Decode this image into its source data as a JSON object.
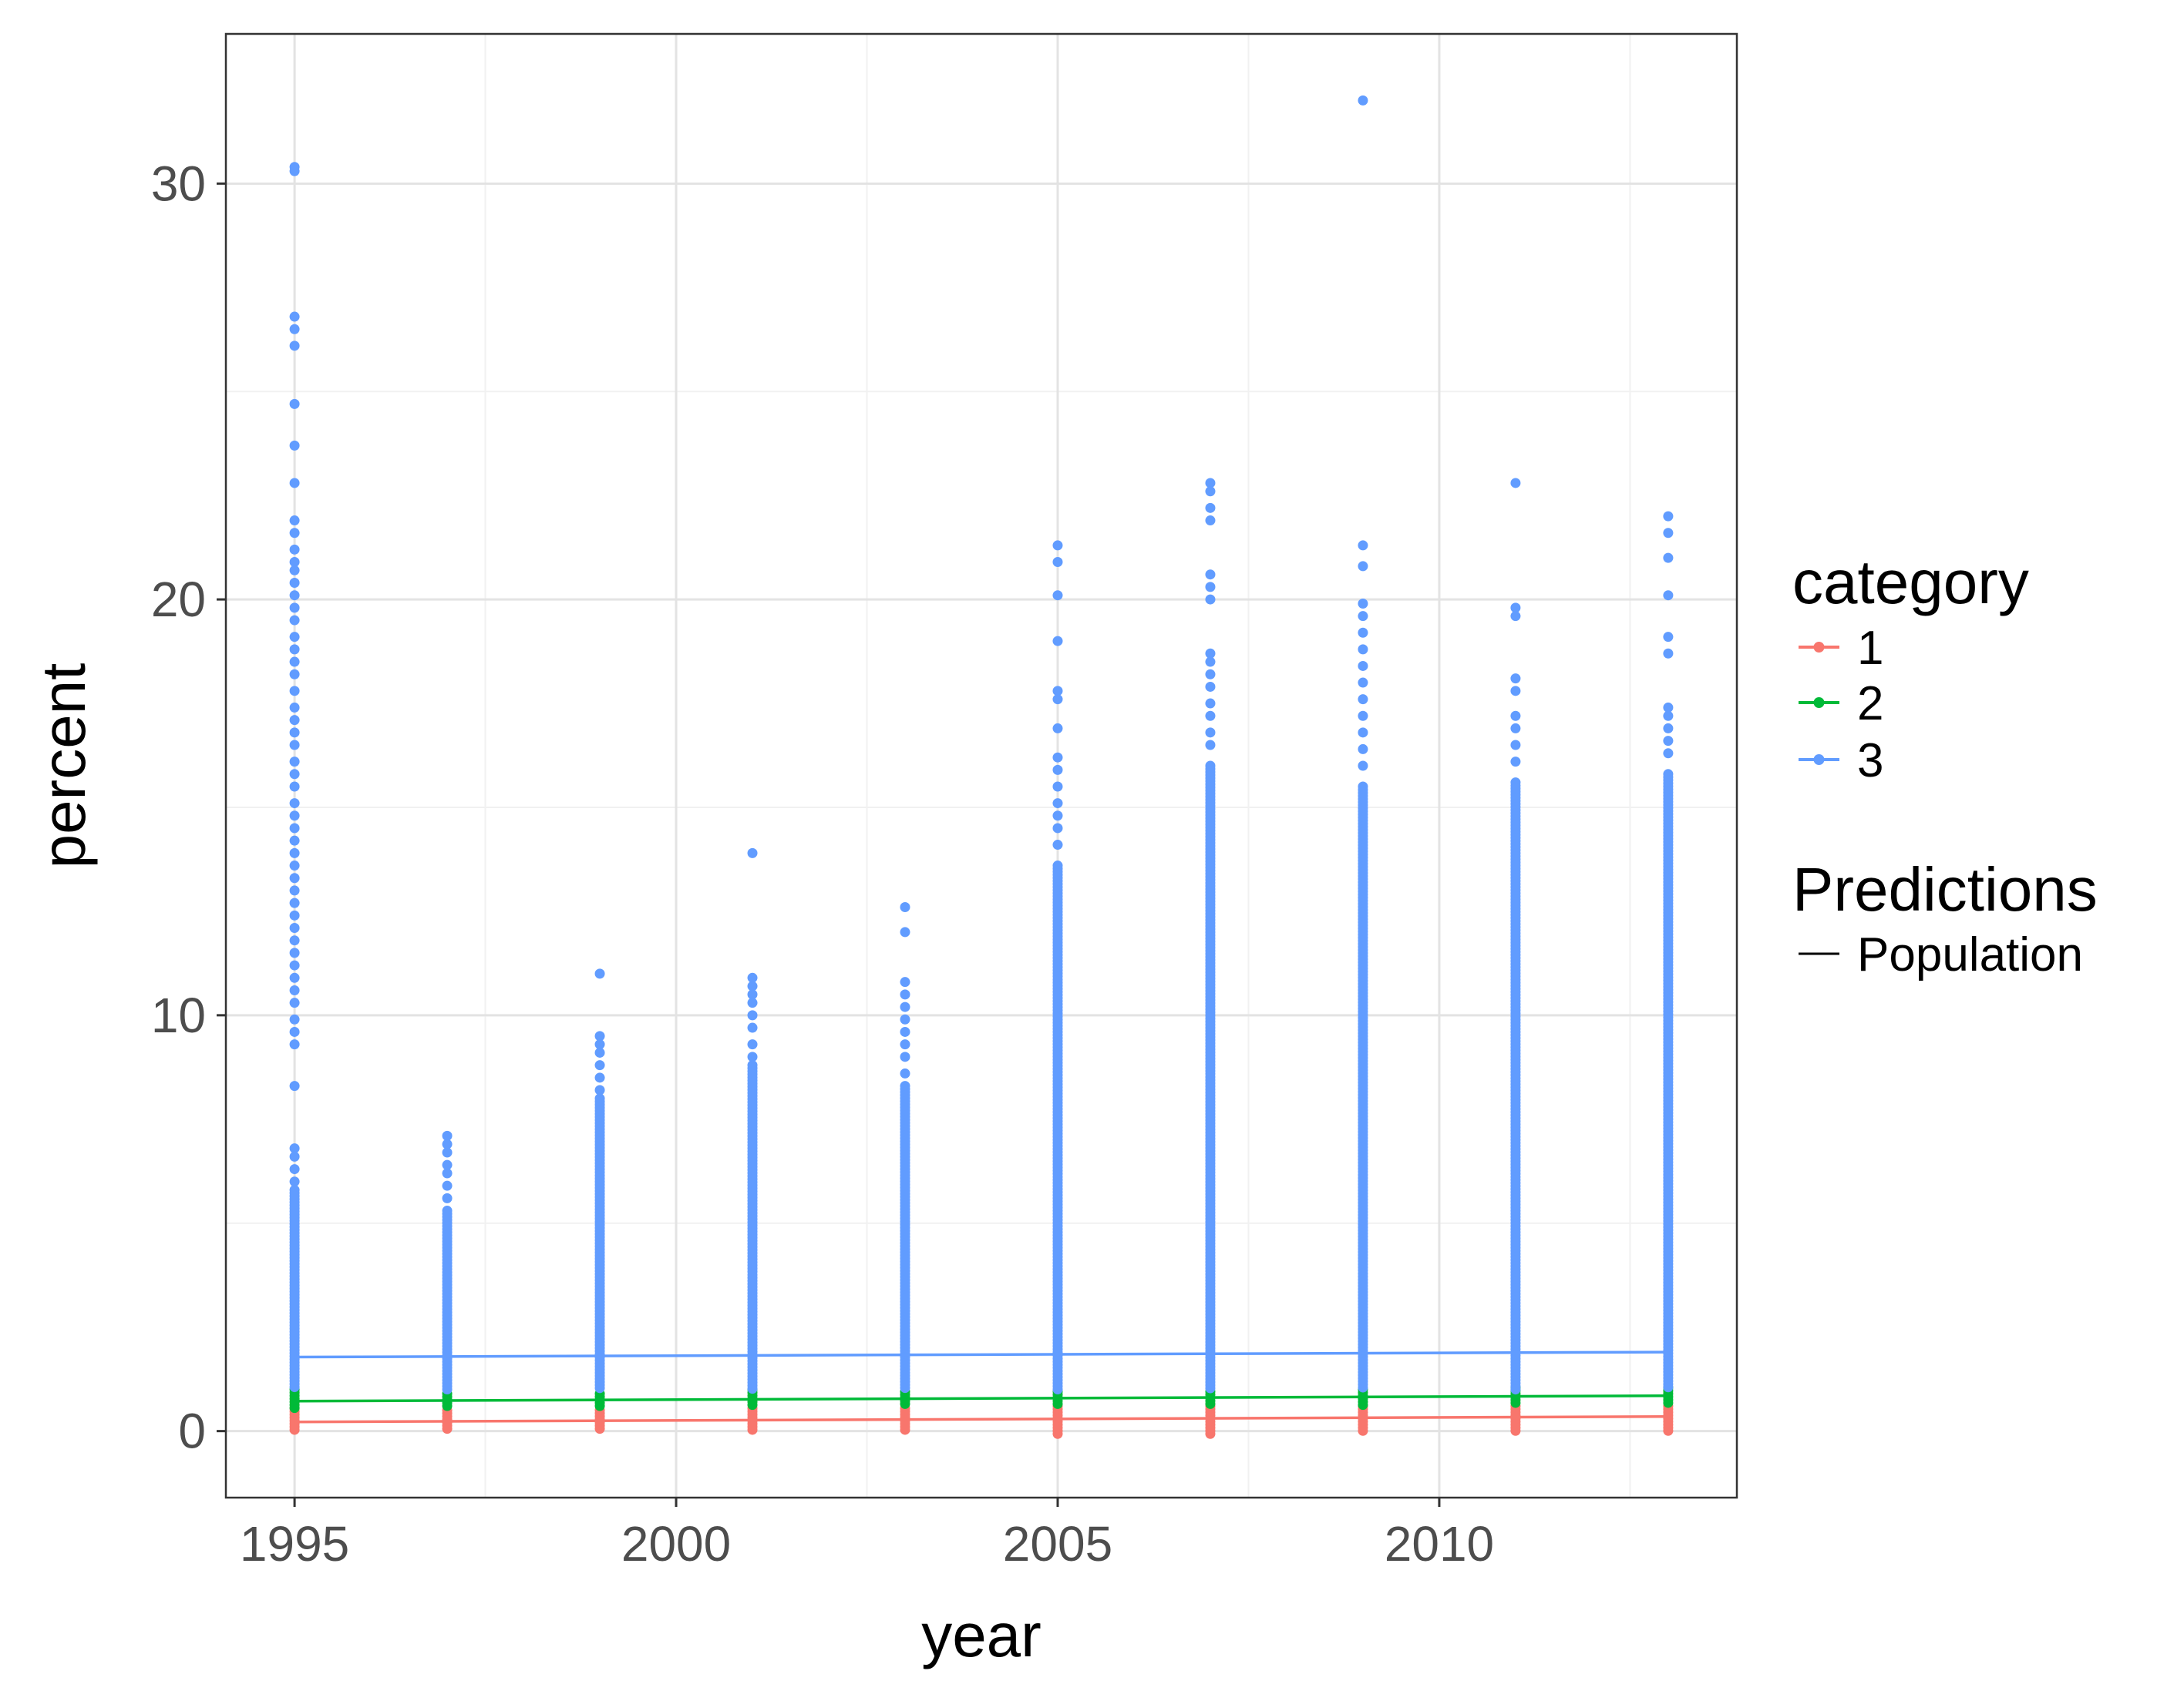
{
  "chart_data": {
    "type": "scatter",
    "xlabel": "year",
    "ylabel": "percent",
    "xlim": [
      1994.1,
      2013.9
    ],
    "ylim": [
      -1.6,
      33.6
    ],
    "x_ticks": [
      1995,
      2000,
      2005,
      2010
    ],
    "y_ticks": [
      0,
      10,
      20,
      30
    ],
    "x_tick_labels": [
      "1995",
      "2000",
      "2005",
      "2010"
    ],
    "y_tick_labels": [
      "0",
      "10",
      "20",
      "30"
    ],
    "grid": true,
    "legend_position": "right",
    "colors": {
      "1": "#F8766D",
      "2": "#00BA38",
      "3": "#619CFF",
      "population_line": "#000000",
      "panel_border": "#333333",
      "grid_major": "#e3e3e3",
      "grid_minor": "#f1f1f1"
    },
    "years": [
      1995,
      1997,
      1999,
      2001,
      2003,
      2005,
      2007,
      2009,
      2011,
      2013
    ],
    "series": [
      {
        "name": "1",
        "points_range": [
          [
            1995,
            0.0,
            0.55
          ],
          [
            1997,
            0.0,
            0.5
          ],
          [
            1999,
            0.0,
            0.5
          ],
          [
            2001,
            0.0,
            0.55
          ],
          [
            2003,
            0.0,
            0.55
          ],
          [
            2005,
            -0.1,
            0.6
          ],
          [
            2007,
            -0.1,
            0.6
          ],
          [
            2009,
            0.0,
            0.6
          ],
          [
            2011,
            0.0,
            0.6
          ],
          [
            2013,
            0.0,
            0.6
          ]
        ],
        "outliers": [],
        "prediction": [
          [
            1995,
            0.22
          ],
          [
            2013,
            0.35
          ]
        ]
      },
      {
        "name": "2",
        "points_range": [
          [
            1995,
            0.55,
            1.0
          ],
          [
            1997,
            0.55,
            0.9
          ],
          [
            1999,
            0.55,
            0.9
          ],
          [
            2001,
            0.6,
            1.0
          ],
          [
            2003,
            0.6,
            0.95
          ],
          [
            2005,
            0.6,
            0.95
          ],
          [
            2007,
            0.6,
            0.95
          ],
          [
            2009,
            0.6,
            1.0
          ],
          [
            2011,
            0.65,
            1.05
          ],
          [
            2013,
            0.65,
            1.05
          ]
        ],
        "outliers": [],
        "prediction": [
          [
            1995,
            0.72
          ],
          [
            2013,
            0.85
          ]
        ]
      },
      {
        "name": "3",
        "points_range": [
          [
            1995,
            1.0,
            5.8
          ],
          [
            1997,
            1.0,
            5.3
          ],
          [
            1999,
            1.0,
            8.0
          ],
          [
            2001,
            1.0,
            8.8
          ],
          [
            2003,
            1.0,
            8.3
          ],
          [
            2005,
            1.0,
            13.6
          ],
          [
            2007,
            1.0,
            16.0
          ],
          [
            2009,
            1.0,
            15.5
          ],
          [
            2011,
            1.0,
            15.6
          ],
          [
            2013,
            1.0,
            15.8
          ]
        ],
        "outliers": [
          [
            1995,
            30.4
          ],
          [
            1995,
            30.3
          ],
          [
            1995,
            26.8
          ],
          [
            1995,
            26.5
          ],
          [
            1995,
            26.1
          ],
          [
            1995,
            24.7
          ],
          [
            1995,
            23.7
          ],
          [
            1995,
            22.8
          ],
          [
            1995,
            21.9
          ],
          [
            1995,
            21.6
          ],
          [
            1995,
            21.2
          ],
          [
            1995,
            20.9
          ],
          [
            1995,
            20.7
          ],
          [
            1995,
            20.4
          ],
          [
            1995,
            20.1
          ],
          [
            1995,
            19.8
          ],
          [
            1995,
            19.5
          ],
          [
            1995,
            19.1
          ],
          [
            1995,
            18.8
          ],
          [
            1995,
            18.5
          ],
          [
            1995,
            18.2
          ],
          [
            1995,
            17.8
          ],
          [
            1995,
            17.4
          ],
          [
            1995,
            17.1
          ],
          [
            1995,
            16.8
          ],
          [
            1995,
            16.5
          ],
          [
            1995,
            16.1
          ],
          [
            1995,
            15.8
          ],
          [
            1995,
            15.5
          ],
          [
            1995,
            15.1
          ],
          [
            1995,
            14.8
          ],
          [
            1995,
            14.5
          ],
          [
            1995,
            14.2
          ],
          [
            1995,
            13.9
          ],
          [
            1995,
            13.6
          ],
          [
            1995,
            13.3
          ],
          [
            1995,
            13.0
          ],
          [
            1995,
            12.7
          ],
          [
            1995,
            12.4
          ],
          [
            1995,
            12.1
          ],
          [
            1995,
            11.8
          ],
          [
            1995,
            11.5
          ],
          [
            1995,
            11.2
          ],
          [
            1995,
            10.9
          ],
          [
            1995,
            10.6
          ],
          [
            1995,
            10.3
          ],
          [
            1995,
            9.9
          ],
          [
            1995,
            9.6
          ],
          [
            1995,
            9.3
          ],
          [
            1995,
            8.3
          ],
          [
            1995,
            6.8
          ],
          [
            1995,
            6.6
          ],
          [
            1995,
            6.3
          ],
          [
            1995,
            6.0
          ],
          [
            1997,
            7.1
          ],
          [
            1997,
            6.9
          ],
          [
            1997,
            6.7
          ],
          [
            1997,
            6.4
          ],
          [
            1997,
            6.2
          ],
          [
            1997,
            5.9
          ],
          [
            1997,
            5.6
          ],
          [
            1999,
            11.0
          ],
          [
            1999,
            9.5
          ],
          [
            1999,
            9.3
          ],
          [
            1999,
            9.1
          ],
          [
            1999,
            8.8
          ],
          [
            1999,
            8.5
          ],
          [
            1999,
            8.2
          ],
          [
            2001,
            13.9
          ],
          [
            2001,
            10.9
          ],
          [
            2001,
            10.7
          ],
          [
            2001,
            10.5
          ],
          [
            2001,
            10.3
          ],
          [
            2001,
            10.0
          ],
          [
            2001,
            9.7
          ],
          [
            2001,
            9.3
          ],
          [
            2001,
            9.0
          ],
          [
            2003,
            12.6
          ],
          [
            2003,
            12.0
          ],
          [
            2003,
            10.8
          ],
          [
            2003,
            10.5
          ],
          [
            2003,
            10.2
          ],
          [
            2003,
            9.9
          ],
          [
            2003,
            9.6
          ],
          [
            2003,
            9.3
          ],
          [
            2003,
            9.0
          ],
          [
            2003,
            8.6
          ],
          [
            2005,
            21.3
          ],
          [
            2005,
            20.9
          ],
          [
            2005,
            20.1
          ],
          [
            2005,
            19.0
          ],
          [
            2005,
            17.8
          ],
          [
            2005,
            17.6
          ],
          [
            2005,
            16.9
          ],
          [
            2005,
            16.2
          ],
          [
            2005,
            15.9
          ],
          [
            2005,
            15.5
          ],
          [
            2005,
            15.1
          ],
          [
            2005,
            14.8
          ],
          [
            2005,
            14.5
          ],
          [
            2005,
            14.1
          ],
          [
            2007,
            22.8
          ],
          [
            2007,
            22.6
          ],
          [
            2007,
            22.2
          ],
          [
            2007,
            21.9
          ],
          [
            2007,
            20.6
          ],
          [
            2007,
            20.3
          ],
          [
            2007,
            20.0
          ],
          [
            2007,
            18.7
          ],
          [
            2007,
            18.5
          ],
          [
            2007,
            18.2
          ],
          [
            2007,
            17.9
          ],
          [
            2007,
            17.5
          ],
          [
            2007,
            17.2
          ],
          [
            2007,
            16.8
          ],
          [
            2007,
            16.5
          ],
          [
            2009,
            32.0
          ],
          [
            2009,
            21.3
          ],
          [
            2009,
            20.8
          ],
          [
            2009,
            19.9
          ],
          [
            2009,
            19.6
          ],
          [
            2009,
            19.2
          ],
          [
            2009,
            18.8
          ],
          [
            2009,
            18.4
          ],
          [
            2009,
            18.0
          ],
          [
            2009,
            17.6
          ],
          [
            2009,
            17.2
          ],
          [
            2009,
            16.8
          ],
          [
            2009,
            16.4
          ],
          [
            2009,
            16.0
          ],
          [
            2011,
            22.8
          ],
          [
            2011,
            19.8
          ],
          [
            2011,
            19.6
          ],
          [
            2011,
            18.1
          ],
          [
            2011,
            17.8
          ],
          [
            2011,
            17.2
          ],
          [
            2011,
            16.9
          ],
          [
            2011,
            16.5
          ],
          [
            2011,
            16.1
          ],
          [
            2013,
            22.0
          ],
          [
            2013,
            21.6
          ],
          [
            2013,
            21.0
          ],
          [
            2013,
            20.1
          ],
          [
            2013,
            19.1
          ],
          [
            2013,
            18.7
          ],
          [
            2013,
            17.4
          ],
          [
            2013,
            17.2
          ],
          [
            2013,
            16.9
          ],
          [
            2013,
            16.6
          ],
          [
            2013,
            16.3
          ]
        ],
        "prediction": [
          [
            1995,
            1.78
          ],
          [
            2013,
            1.9
          ]
        ]
      }
    ],
    "legend": {
      "category_title": "category",
      "category_items": [
        "1",
        "2",
        "3"
      ],
      "predictions_title": "Predictions",
      "predictions_items": [
        "Population"
      ]
    }
  }
}
